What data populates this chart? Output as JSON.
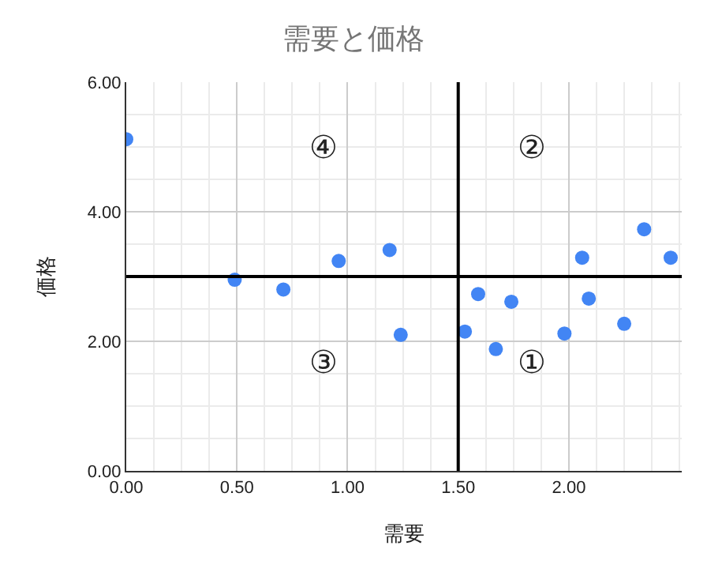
{
  "chart_data": {
    "type": "scatter",
    "title": "需要と価格",
    "xlabel": "需要",
    "ylabel": "価格",
    "x": [
      0,
      0.49,
      0.71,
      0.96,
      1.19,
      1.24,
      1.53,
      1.59,
      1.67,
      1.74,
      1.98,
      2.06,
      2.09,
      2.25,
      2.34,
      2.46
    ],
    "values": [
      5.12,
      2.95,
      2.8,
      3.24,
      3.41,
      2.1,
      2.15,
      2.73,
      1.88,
      2.61,
      2.12,
      3.29,
      2.66,
      2.27,
      3.73,
      3.29
    ],
    "color": "#4285f4",
    "marker": "circle",
    "xlim": [
      0,
      2.51
    ],
    "xticks": [
      {
        "value": 0,
        "label": "0.00"
      },
      {
        "value": 0.5,
        "label": "0.50"
      },
      {
        "value": 1,
        "label": "1.00"
      },
      {
        "value": 1.5,
        "label": "1.50"
      },
      {
        "value": 2,
        "label": "2.00"
      }
    ],
    "ylim": [
      0,
      6
    ],
    "yticks": [
      {
        "value": 0,
        "label": "0.00"
      },
      {
        "value": 2,
        "label": "2.00"
      },
      {
        "value": 4,
        "label": "4.00"
      },
      {
        "value": 6,
        "label": "6.00"
      }
    ],
    "grid": true,
    "ref_lines": [
      {
        "axis": "x",
        "value": 1.5,
        "color": "#000000"
      },
      {
        "axis": "y",
        "value": 3,
        "color": "#000000"
      }
    ],
    "annotations": [
      "①",
      "②",
      "③",
      "④"
    ]
  }
}
